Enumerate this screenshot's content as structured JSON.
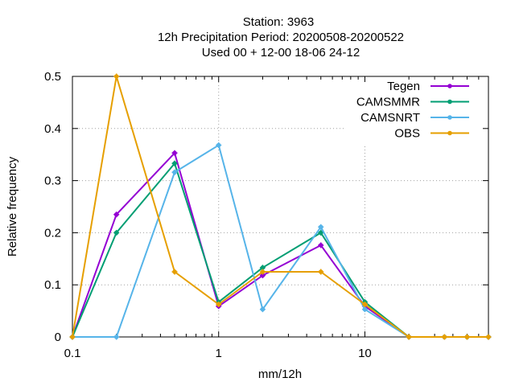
{
  "chart_data": {
    "type": "line",
    "title_lines": [
      "Station:     3963",
      "12h Precipitation  Period: 20200508-20200522",
      "Used  00 + 12-00 18-06 24-12"
    ],
    "xlabel": "mm/12h",
    "ylabel": "Relative frequency",
    "x_scale": "log",
    "xlim": [
      0.1,
      70
    ],
    "ylim": [
      0,
      0.5
    ],
    "x_ticks": [
      {
        "value": 0.1,
        "label": "0.1"
      },
      {
        "value": 1,
        "label": "1"
      },
      {
        "value": 10,
        "label": "10"
      }
    ],
    "y_ticks": [
      {
        "value": 0,
        "label": "0"
      },
      {
        "value": 0.1,
        "label": "0.1"
      },
      {
        "value": 0.2,
        "label": "0.2"
      },
      {
        "value": 0.3,
        "label": "0.3"
      },
      {
        "value": 0.4,
        "label": "0.4"
      },
      {
        "value": 0.5,
        "label": "0.5"
      }
    ],
    "grid": true,
    "legend_position": "top-right",
    "x": [
      0.1,
      0.2,
      0.5,
      1,
      2,
      5,
      10,
      20,
      35,
      50,
      70
    ],
    "series": [
      {
        "name": "Tegen",
        "color": "#9400d3",
        "values": [
          0,
          0.235,
          0.353,
          0.059,
          0.118,
          0.176,
          0.059,
          0,
          0,
          0,
          0
        ]
      },
      {
        "name": "CAMSMMR",
        "color": "#009e73",
        "values": [
          0,
          0.2,
          0.333,
          0.067,
          0.133,
          0.2,
          0.067,
          0,
          0,
          0,
          0
        ]
      },
      {
        "name": "CAMSNRT",
        "color": "#56b4e9",
        "values": [
          0,
          0,
          0.316,
          0.368,
          0.053,
          0.211,
          0.053,
          0,
          0,
          0,
          0
        ]
      },
      {
        "name": "OBS",
        "color": "#e69f00",
        "values": [
          0,
          0.5,
          0.125,
          0.0625,
          0.125,
          0.125,
          0.0625,
          0,
          0,
          0,
          0
        ]
      }
    ]
  }
}
